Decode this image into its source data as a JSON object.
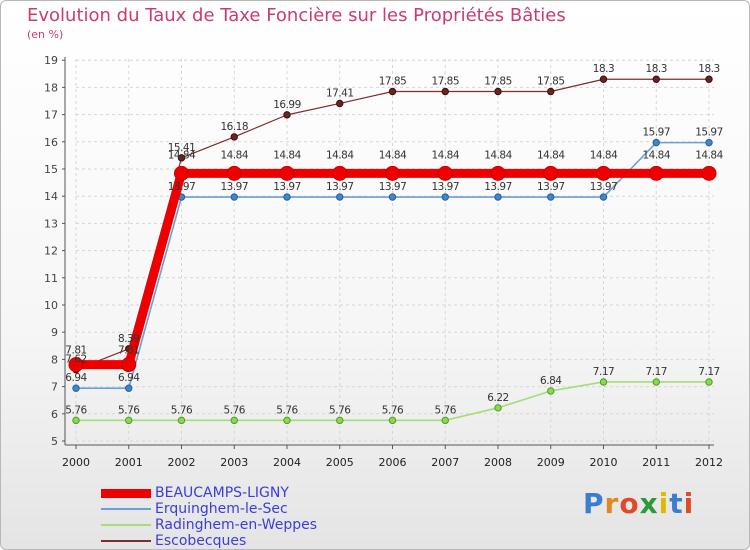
{
  "page": {
    "title": "Evolution du Taux de Taxe Foncière sur les Propriétés Bâties",
    "unit": "(en %)",
    "logo": "Proxiti"
  },
  "colors": {
    "title": "#cc3a73",
    "legend_text": "#3d3dd9"
  },
  "chart_data": {
    "type": "line",
    "title": "Evolution du Taux de Taxe Foncière sur les Propriétés Bâties",
    "ylabel": "(en %)",
    "xlabel": "",
    "x": [
      "2000",
      "2001",
      "2002",
      "2003",
      "2004",
      "2005",
      "2006",
      "2007",
      "2008",
      "2009",
      "2010",
      "2011",
      "2012"
    ],
    "ylim": [
      5,
      19
    ],
    "yticks": [
      5,
      6,
      7,
      8,
      9,
      10,
      11,
      12,
      13,
      14,
      15,
      16,
      17,
      18,
      19
    ],
    "legend_position": "bottom",
    "series": [
      {
        "name": "BEAUCAMPS-LIGNY",
        "color": "#ee0000",
        "values": [
          7.81,
          7.81,
          14.84,
          14.84,
          14.84,
          14.84,
          14.84,
          14.84,
          14.84,
          14.84,
          14.84,
          14.84,
          14.84
        ],
        "labels": [
          "7.81",
          "7.81",
          "14.84",
          "14.84",
          "14.84",
          "14.84",
          "14.84",
          "14.84",
          "14.84",
          "14.84",
          "14.84",
          "14.84",
          "14.84"
        ]
      },
      {
        "name": "Erquinghem-le-Sec",
        "color": "#6a9fd8",
        "values": [
          6.94,
          6.94,
          13.97,
          13.97,
          13.97,
          13.97,
          13.97,
          13.97,
          13.97,
          13.97,
          13.97,
          15.97,
          15.97
        ],
        "labels": [
          "6.94",
          "6.94",
          "13.97",
          "13.97",
          "13.97",
          "13.97",
          "13.97",
          "13.97",
          "13.97",
          "13.97",
          "13.97",
          "15.97",
          "15.97"
        ]
      },
      {
        "name": "Radinghem-en-Weppes",
        "color": "#a6dc7a",
        "values": [
          5.76,
          5.76,
          5.76,
          5.76,
          5.76,
          5.76,
          5.76,
          5.76,
          6.22,
          6.84,
          7.17,
          7.17,
          7.17
        ],
        "labels": [
          "5.76",
          "5.76",
          "5.76",
          "5.76",
          "5.76",
          "5.76",
          "5.76",
          "5.76",
          "6.22",
          "6.84",
          "7.17",
          "7.17",
          "7.17"
        ]
      },
      {
        "name": "Escobecques",
        "color": "#7a2e2e",
        "values": [
          7.62,
          8.39,
          15.41,
          16.18,
          16.99,
          17.41,
          17.85,
          17.85,
          17.85,
          17.85,
          18.3,
          18.3,
          18.3
        ],
        "labels": [
          "7.62",
          "8.39",
          "15.41",
          "16.18",
          "16.99",
          "17.41",
          "17.85",
          "17.85",
          "17.85",
          "17.85",
          "18.3",
          "18.3",
          "18.3"
        ]
      }
    ]
  }
}
